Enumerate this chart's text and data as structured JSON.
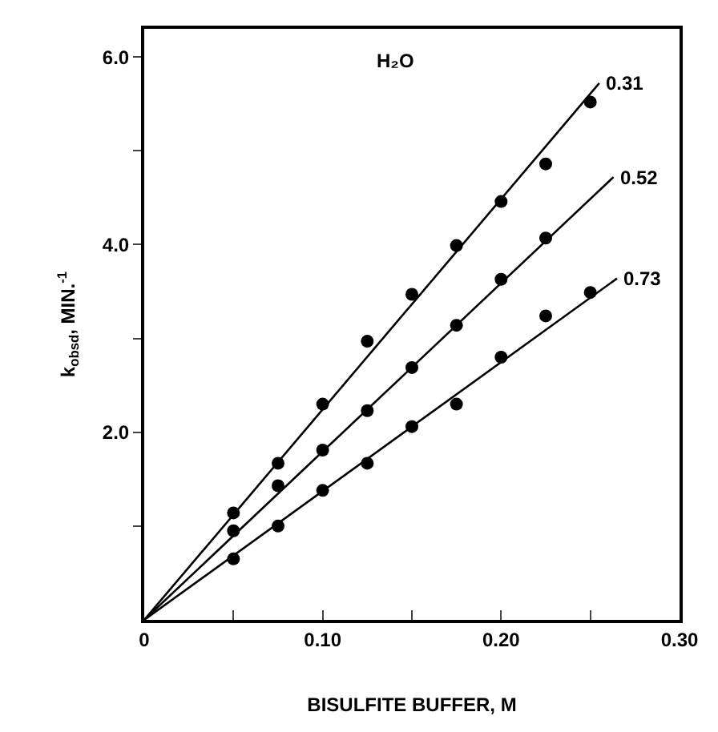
{
  "chart_data": {
    "type": "scatter",
    "xlabel": "BISULFITE BUFFER, M",
    "ylabel": "k$_{obsd}$, MIN.$^{-1}$",
    "annotations": [
      "H₂O"
    ],
    "xlim": [
      0,
      0.3
    ],
    "ylim": [
      0,
      6.3
    ],
    "xticks": [
      0,
      {
        "value": 0.05,
        "label": null
      },
      {
        "value": 0.1,
        "label": "0.10"
      },
      {
        "value": 0.15,
        "label": null
      },
      {
        "value": 0.2,
        "label": "0.20"
      },
      {
        "value": 0.25,
        "label": null
      },
      {
        "value": 0.3,
        "label": "0.30"
      }
    ],
    "yticks": [
      {
        "value": 1,
        "label": null
      },
      {
        "value": 2,
        "label": "2.0"
      },
      {
        "value": 3,
        "label": null
      },
      {
        "value": 4,
        "label": "4.0"
      },
      {
        "value": 5,
        "label": null
      },
      {
        "value": 6,
        "label": "6.0"
      }
    ],
    "grid": false,
    "marker": "circle",
    "line_style": "solid",
    "series": [
      {
        "color": "#000000",
        "x": [
          0.05,
          0.075,
          0.1,
          0.125,
          0.15,
          0.175,
          0.2,
          0.225,
          0.25
        ],
        "values": [
          1.14,
          1.67,
          2.3,
          2.97,
          3.47,
          3.99,
          4.46,
          4.86,
          5.52
        ]
      },
      {
        "color": "#000000",
        "x": [
          0.05,
          0.075,
          0.1,
          0.125,
          0.15,
          0.175,
          0.2,
          0.225
        ],
        "values": [
          0.95,
          1.43,
          1.81,
          2.23,
          2.69,
          3.14,
          3.63,
          4.07
        ]
      },
      {
        "color": "#000000",
        "x": [
          0.05,
          0.075,
          0.1,
          0.125,
          0.15,
          0.175,
          0.2,
          0.225,
          0.25
        ],
        "values": [
          0.65,
          1.0,
          1.38,
          1.67,
          2.06,
          2.3,
          2.8,
          3.24,
          3.49
        ]
      },
      {
        "type": "line",
        "name": "0.31",
        "marker": "none",
        "color": "#000000",
        "x": [
          0,
          0.255
        ],
        "values": [
          0,
          5.72
        ]
      },
      {
        "type": "line",
        "name": "0.52",
        "marker": "none",
        "color": "#000000",
        "x": [
          0,
          0.263
        ],
        "values": [
          0,
          4.72
        ]
      },
      {
        "type": "line",
        "name": "0.73",
        "marker": "none",
        "color": "#000000",
        "x": [
          0,
          0.265
        ],
        "values": [
          0,
          3.64
        ]
      }
    ]
  }
}
